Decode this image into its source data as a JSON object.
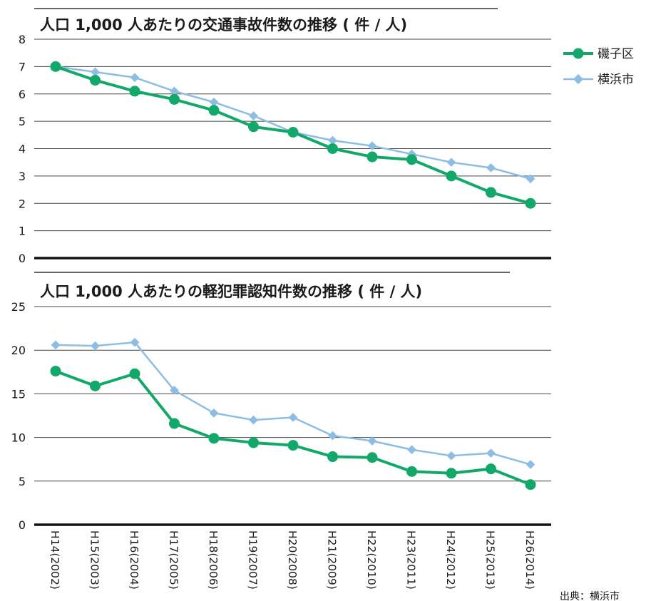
{
  "colors": {
    "isogo": "#12a86a",
    "yokohama": "#8dbde3",
    "grid": "#333333",
    "axis": "#111111"
  },
  "legend": [
    {
      "name": "磯子区",
      "color": "#12a86a"
    },
    {
      "name": "横浜市",
      "color": "#8dbde3"
    }
  ],
  "source_note": "出典：横浜市",
  "chart_data": [
    {
      "type": "line",
      "title": "人口 1,000 人あたりの交通事故件数の推移 ( 件 / 人)",
      "categories": [
        "H14(2002)",
        "H15(2003)",
        "H16(2004)",
        "H17(2005)",
        "H18(2006)",
        "H19(2007)",
        "H20(2008)",
        "H21(2009)",
        "H22(2010)",
        "H23(2011)",
        "H24(2012)",
        "H25(2013)",
        "H26(2014)"
      ],
      "ylim": [
        0,
        8
      ],
      "yticks": [
        0,
        1,
        2,
        3,
        4,
        5,
        6,
        7,
        8
      ],
      "grid": true,
      "legend_position": "right",
      "series": [
        {
          "name": "磯子区",
          "values": [
            7.0,
            6.5,
            6.1,
            5.8,
            5.4,
            4.8,
            4.6,
            4.0,
            3.7,
            3.6,
            3.0,
            2.4,
            2.0
          ]
        },
        {
          "name": "横浜市",
          "values": [
            7.0,
            6.8,
            6.6,
            6.1,
            5.7,
            5.2,
            4.6,
            4.3,
            4.1,
            3.8,
            3.5,
            3.3,
            2.9
          ]
        }
      ]
    },
    {
      "type": "line",
      "title": "人口 1,000 人あたりの軽犯罪認知件数の推移 ( 件 / 人)",
      "categories": [
        "H14(2002)",
        "H15(2003)",
        "H16(2004)",
        "H17(2005)",
        "H18(2006)",
        "H19(2007)",
        "H20(2008)",
        "H21(2009)",
        "H22(2010)",
        "H23(2011)",
        "H24(2012)",
        "H25(2013)",
        "H26(2014)"
      ],
      "ylim": [
        0,
        25
      ],
      "yticks": [
        0,
        5,
        10,
        15,
        20,
        25
      ],
      "grid": true,
      "series": [
        {
          "name": "磯子区",
          "values": [
            17.6,
            15.9,
            17.3,
            11.6,
            9.9,
            9.4,
            9.1,
            7.8,
            7.7,
            6.1,
            5.9,
            6.4,
            4.6
          ]
        },
        {
          "name": "横浜市",
          "values": [
            20.6,
            20.5,
            20.9,
            15.4,
            12.8,
            12.0,
            12.3,
            10.2,
            9.6,
            8.6,
            7.9,
            8.2,
            6.9
          ]
        }
      ]
    }
  ]
}
